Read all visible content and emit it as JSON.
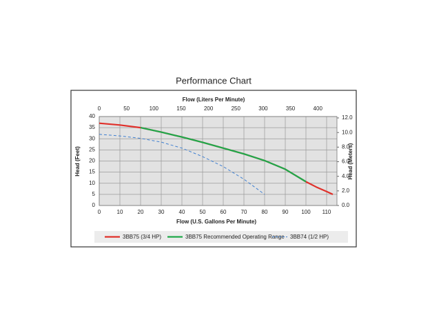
{
  "chart_data": {
    "type": "line",
    "title": "Performance Chart",
    "x_label": "Flow (U.S. Gallons Per Minute)",
    "x2_label": "Flow (Liters Per Minute)",
    "y_label": "Head (Feet)",
    "y2_label": "Head (Meters)",
    "xlim": [
      0,
      115
    ],
    "xticks": [
      0,
      10,
      20,
      30,
      40,
      50,
      60,
      70,
      80,
      90,
      100,
      110
    ],
    "x2lim": [
      0,
      435
    ],
    "x2ticks": [
      0,
      50,
      100,
      150,
      200,
      250,
      300,
      350,
      400
    ],
    "ylim": [
      0,
      40
    ],
    "yticks": [
      0,
      5,
      10,
      15,
      20,
      25,
      30,
      35,
      40
    ],
    "y2lim": [
      0,
      12.19
    ],
    "y2ticks": [
      {
        "value": 0,
        "label": "0.0"
      },
      {
        "value": 2,
        "label": "2.0"
      },
      {
        "value": 4,
        "label": "4.0"
      },
      {
        "value": 6,
        "label": "6.0"
      },
      {
        "value": 8,
        "label": "8.0"
      },
      {
        "value": 10,
        "label": "10.0"
      },
      {
        "value": 12,
        "label": "12.0"
      }
    ],
    "grid": true,
    "series": [
      {
        "name": "3BB75 (3/4 HP)",
        "color": "#e0302a",
        "dashed": false,
        "x": [
          0,
          10,
          20,
          30,
          40,
          50,
          60,
          70,
          80,
          90,
          100,
          105,
          110,
          113
        ],
        "values": [
          37,
          36.2,
          35,
          33,
          30.8,
          28.4,
          25.8,
          23.2,
          20.2,
          16.3,
          10.7,
          8.3,
          6.3,
          5
        ]
      },
      {
        "name": "3BB75 Recommended Operating Range",
        "color": "#1fa84a",
        "dashed": false,
        "x": [
          20,
          30,
          40,
          50,
          60,
          70,
          80,
          90,
          100
        ],
        "values": [
          35,
          33,
          30.8,
          28.4,
          25.8,
          23.2,
          20.2,
          16.3,
          10.7
        ]
      },
      {
        "name": "3BB74 (1/2 HP)",
        "color": "#3f7fd0",
        "dashed": true,
        "x": [
          0,
          10,
          20,
          30,
          40,
          50,
          60,
          70,
          80
        ],
        "values": [
          32,
          31.3,
          30.2,
          28.5,
          25.8,
          22,
          17.5,
          11.8,
          5
        ]
      }
    ]
  }
}
